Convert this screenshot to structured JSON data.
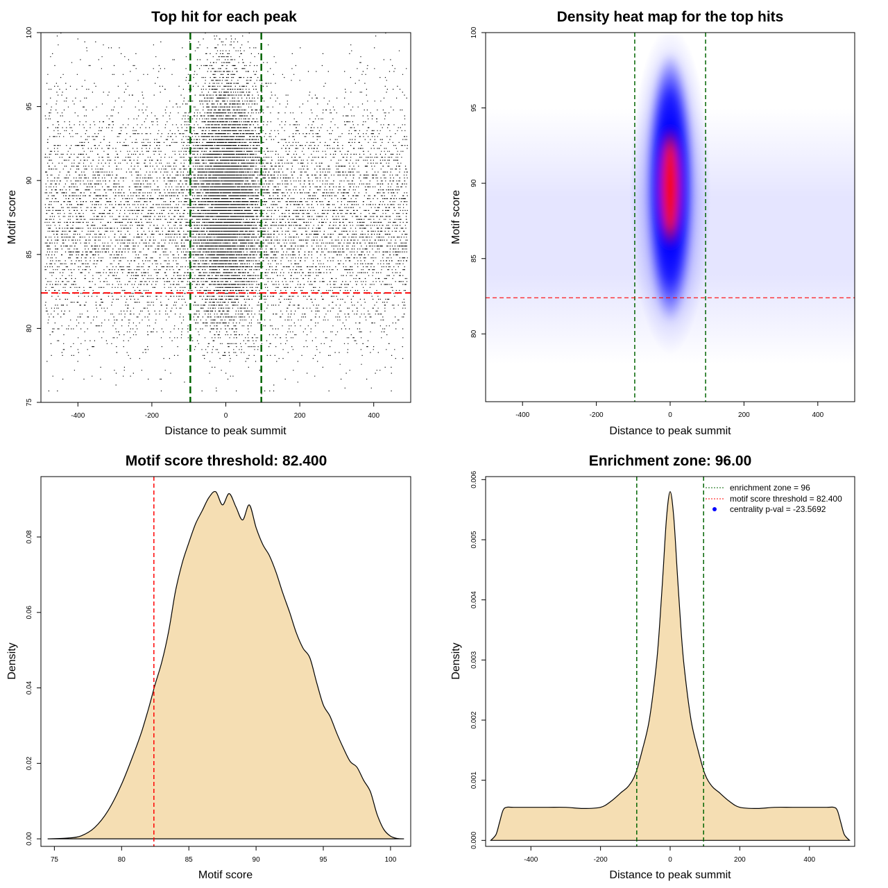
{
  "chart_data": [
    {
      "id": "scatter",
      "type": "scatter",
      "title": "Top hit for each peak",
      "xlabel": "Distance to peak summit",
      "ylabel": "Motif score",
      "xlim": [
        -500,
        500
      ],
      "ylim": [
        75,
        100
      ],
      "xticks": [
        -400,
        -200,
        0,
        200,
        400
      ],
      "yticks": [
        75,
        80,
        85,
        90,
        95,
        100
      ],
      "vlines": [
        -96,
        96
      ],
      "hline": 82.4,
      "vline_color": "#006400",
      "hline_color": "#ff0000",
      "point_color": "#000000",
      "description": "",
      "grid": false
    },
    {
      "id": "heatmap",
      "type": "heatmap",
      "title": "Density heat map for the top hits",
      "xlabel": "Distance to peak summit",
      "ylabel": "Motif score",
      "xlim": [
        -500,
        500
      ],
      "ylim": [
        75.5,
        100
      ],
      "xticks": [
        -400,
        -200,
        0,
        200,
        400
      ],
      "yticks": [
        80,
        85,
        90,
        95,
        100
      ],
      "vlines": [
        -96,
        96
      ],
      "hline": 82.4,
      "peak": {
        "x": 0,
        "y": 89.5
      },
      "colors": [
        "#ffffff",
        "#0000ff",
        "#ff0000"
      ],
      "vline_color": "#006400",
      "hline_color": "#ff0000",
      "grid": false
    },
    {
      "id": "score-density",
      "type": "area",
      "title": "Motif score threshold: 82.400",
      "xlabel": "Motif score",
      "ylabel": "Density",
      "xlim": [
        74,
        101.5
      ],
      "ylim": [
        -0.002,
        0.096
      ],
      "xticks": [
        75,
        80,
        85,
        90,
        95,
        100
      ],
      "yticks": [
        0.0,
        0.02,
        0.04,
        0.06,
        0.08
      ],
      "ytick_labels": [
        "0.00",
        "0.02",
        "0.04",
        "0.06",
        "0.08"
      ],
      "vline": 82.4,
      "vline_color": "#ff0000",
      "fill_color": "#f5deb3",
      "x": [
        74.5,
        76,
        77,
        78,
        79,
        80,
        81,
        81.5,
        82,
        82.5,
        83,
        83.5,
        84,
        84.5,
        85,
        85.5,
        86,
        86.5,
        87,
        87.5,
        88,
        88.5,
        89,
        89.5,
        90,
        90.5,
        91,
        91.5,
        92,
        92.5,
        93,
        93.5,
        94,
        94.5,
        95,
        95.5,
        96,
        96.5,
        97,
        97.5,
        98,
        98.5,
        99,
        99.5,
        100,
        100.5,
        101
      ],
      "y": [
        0.0,
        0.0002,
        0.0008,
        0.003,
        0.0075,
        0.0145,
        0.0235,
        0.0285,
        0.0345,
        0.041,
        0.047,
        0.055,
        0.0655,
        0.073,
        0.0785,
        0.0835,
        0.087,
        0.0905,
        0.092,
        0.0885,
        0.0915,
        0.088,
        0.0845,
        0.0885,
        0.0825,
        0.078,
        0.075,
        0.0705,
        0.065,
        0.06,
        0.0545,
        0.0505,
        0.048,
        0.0415,
        0.0355,
        0.0325,
        0.028,
        0.024,
        0.0205,
        0.019,
        0.0155,
        0.0125,
        0.0065,
        0.0025,
        0.0007,
        0.0001,
        0.0
      ]
    },
    {
      "id": "distance-density",
      "type": "area",
      "title": "Enrichment zone: 96.00",
      "xlabel": "Distance to peak summit",
      "ylabel": "Density",
      "xlim": [
        -530,
        530
      ],
      "ylim": [
        -0.0001,
        0.00605
      ],
      "xticks": [
        -400,
        -200,
        0,
        200,
        400
      ],
      "yticks": [
        0.0,
        0.001,
        0.002,
        0.003,
        0.004,
        0.005,
        0.006
      ],
      "ytick_labels": [
        "0.000",
        "0.001",
        "0.002",
        "0.003",
        "0.004",
        "0.005",
        "0.006"
      ],
      "vlines": [
        -96,
        96
      ],
      "vline_color": "#006400",
      "fill_color": "#f5deb3",
      "x": [
        -515,
        -500,
        -490,
        -480,
        -470,
        -450,
        -400,
        -350,
        -300,
        -250,
        -200,
        -170,
        -140,
        -120,
        -100,
        -80,
        -60,
        -40,
        -30,
        -20,
        -10,
        0,
        10,
        20,
        30,
        40,
        60,
        80,
        100,
        120,
        140,
        170,
        200,
        250,
        300,
        350,
        400,
        450,
        470,
        480,
        490,
        500,
        515
      ],
      "y": [
        0.0,
        0.0001,
        0.0003,
        0.0005,
        0.00055,
        0.00055,
        0.00055,
        0.00055,
        0.00055,
        0.00053,
        0.00055,
        0.00065,
        0.0008,
        0.0009,
        0.0011,
        0.0015,
        0.002,
        0.0029,
        0.0036,
        0.0045,
        0.0054,
        0.0058,
        0.0054,
        0.0045,
        0.0036,
        0.0029,
        0.002,
        0.0015,
        0.0011,
        0.0009,
        0.0008,
        0.00065,
        0.00055,
        0.00053,
        0.00055,
        0.00055,
        0.00055,
        0.00055,
        0.00055,
        0.0005,
        0.0003,
        0.0001,
        0.0
      ],
      "legend": {
        "position": "top-right",
        "items": [
          {
            "label": "enrichment zone = 96",
            "color": "#006400",
            "kind": "dotted-line"
          },
          {
            "label": "motif score threshold = 82.400",
            "color": "#ff0000",
            "kind": "dotted-line"
          },
          {
            "label": "centrality p-val = -23.5692",
            "color": "#0000ff",
            "kind": "point"
          }
        ]
      }
    }
  ]
}
